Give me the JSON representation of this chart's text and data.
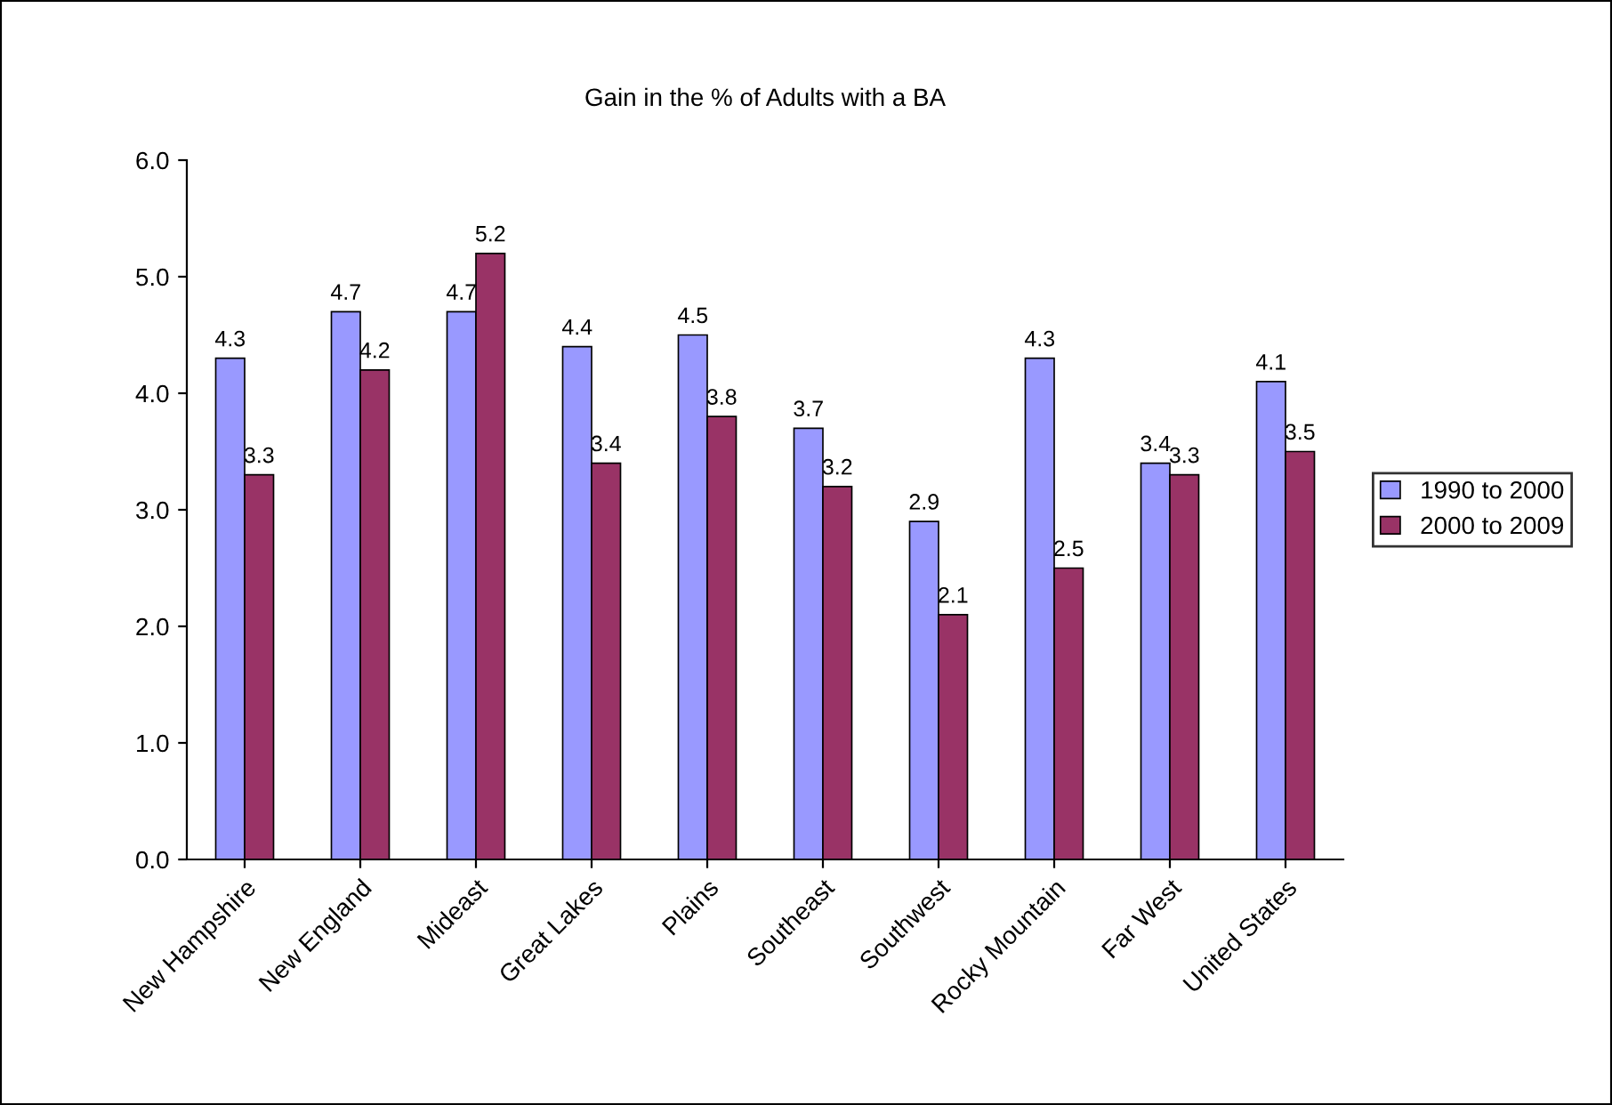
{
  "chart_data": {
    "type": "bar",
    "title": "Gain in the % of Adults with a BA",
    "categories": [
      "New Hampshire",
      "New England",
      "Mideast",
      "Great Lakes",
      "Plains",
      "Southeast",
      "Southwest",
      "Rocky Mountain",
      "Far West",
      "United States"
    ],
    "series": [
      {
        "name": "1990 to 2000",
        "color": "#9999ff",
        "values": [
          4.3,
          4.7,
          4.7,
          4.4,
          4.5,
          3.7,
          2.9,
          4.3,
          3.4,
          4.1
        ]
      },
      {
        "name": "2000 to 2009",
        "color": "#993366",
        "values": [
          3.3,
          4.2,
          5.2,
          3.4,
          3.8,
          3.2,
          2.1,
          2.5,
          3.3,
          3.5
        ]
      }
    ],
    "ylim": [
      0,
      6
    ],
    "yticks": [
      {
        "value": 0,
        "label": "0.0"
      },
      {
        "value": 1,
        "label": "1.0"
      },
      {
        "value": 2,
        "label": "2.0"
      },
      {
        "value": 3,
        "label": "3.0"
      },
      {
        "value": 4,
        "label": "4.0"
      },
      {
        "value": 5,
        "label": "5.0"
      },
      {
        "value": 6,
        "label": "6.0"
      }
    ],
    "grid": false,
    "legend": "right",
    "data_labels": true
  }
}
